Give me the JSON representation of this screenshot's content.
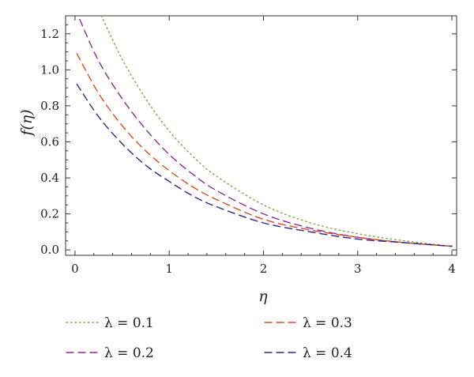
{
  "chart_data": {
    "type": "line",
    "title": "",
    "xlabel": "η",
    "ylabel": "f(η)",
    "xlim": [
      -0.1,
      4.05
    ],
    "ylim": [
      -0.03,
      1.3
    ],
    "x_ticks": [
      0,
      1,
      2,
      3,
      4
    ],
    "y_ticks": [
      0.0,
      0.2,
      0.4,
      0.6,
      0.8,
      1.0,
      1.2
    ],
    "y_tick_labels": [
      "0.0",
      "0.2",
      "0.4",
      "0.6",
      "0.8",
      "1.0",
      "1.2"
    ],
    "x_tick_labels": [
      "0",
      "1",
      "2",
      "3",
      "4"
    ],
    "grid": false,
    "legend_position": "bottom",
    "series": [
      {
        "name": "λ = 0.1",
        "color": "#7aa840",
        "dash": "dotted",
        "x": [
          0.28,
          0.5,
          0.75,
          1.0,
          1.25,
          1.5,
          2.0,
          2.5,
          3.0,
          3.5,
          4.0
        ],
        "y": [
          1.3,
          1.06,
          0.84,
          0.66,
          0.52,
          0.41,
          0.25,
          0.15,
          0.09,
          0.05,
          0.02
        ]
      },
      {
        "name": "λ = 0.2",
        "color": "#8e2a9a",
        "dash": "dashed",
        "x": [
          0.05,
          0.25,
          0.5,
          0.75,
          1.0,
          1.25,
          1.5,
          2.0,
          2.5,
          3.0,
          3.5,
          4.0
        ],
        "y": [
          1.28,
          1.05,
          0.84,
          0.67,
          0.53,
          0.42,
          0.33,
          0.2,
          0.12,
          0.07,
          0.04,
          0.02
        ]
      },
      {
        "name": "λ = 0.3",
        "color": "#e04a1a",
        "dash": "dashed",
        "x": [
          0.02,
          0.25,
          0.5,
          0.75,
          1.0,
          1.25,
          1.5,
          2.0,
          2.5,
          3.0,
          3.5,
          4.0
        ],
        "y": [
          1.09,
          0.87,
          0.69,
          0.55,
          0.44,
          0.35,
          0.28,
          0.17,
          0.11,
          0.07,
          0.04,
          0.02
        ]
      },
      {
        "name": "λ = 0.4",
        "color": "#2a2a8a",
        "dash": "dashed",
        "x": [
          0.02,
          0.25,
          0.5,
          0.75,
          1.0,
          1.25,
          1.5,
          2.0,
          2.5,
          3.0,
          3.5,
          4.0
        ],
        "y": [
          0.92,
          0.74,
          0.59,
          0.47,
          0.38,
          0.3,
          0.24,
          0.15,
          0.1,
          0.06,
          0.04,
          0.02
        ]
      }
    ]
  }
}
